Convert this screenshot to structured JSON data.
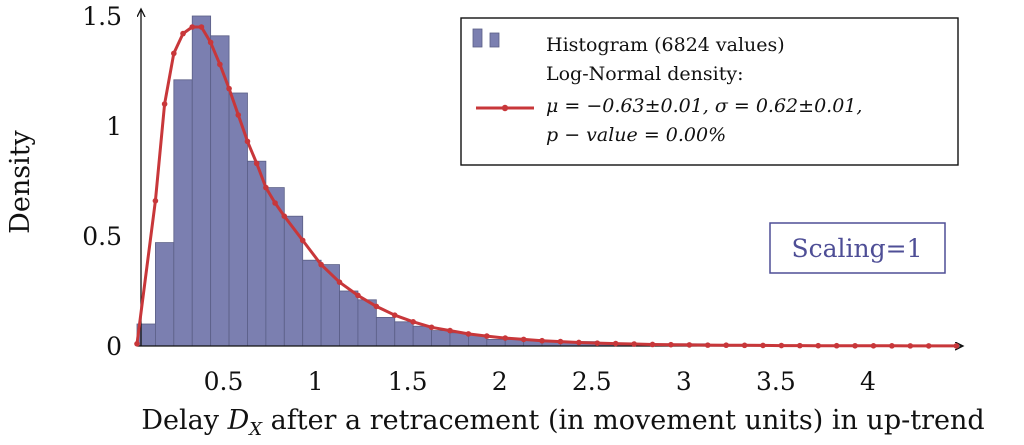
{
  "chart_data": {
    "type": "bar",
    "title": "",
    "xlabel": "Delay D_X after a retracement (in movement units) in up-trend",
    "xlabel_parts": {
      "pre": "Delay ",
      "var": "D",
      "sub": "X",
      "post": " after a retracement (in movement units) in up-trend"
    },
    "ylabel": "Density",
    "xlim": [
      0.03,
      4.5
    ],
    "ylim": [
      0,
      1.5
    ],
    "xticks": [
      "0.5",
      "1",
      "1.5",
      "2",
      "2.5",
      "3",
      "3.5",
      "4"
    ],
    "yticks": [
      "0",
      "0.5",
      "1",
      "1.5"
    ],
    "grid": false,
    "legend_position": "top-right",
    "colors": {
      "histogram": "#7b7fb0",
      "histogram_edge": "#5a5e86",
      "density": "#c8373a",
      "scaling": "#4e4e96"
    },
    "histogram": {
      "name": "Histogram (6824 values)",
      "bin_width": 0.1,
      "bins": [
        {
          "x": 0.03,
          "value": 0.1
        },
        {
          "x": 0.13,
          "value": 0.47
        },
        {
          "x": 0.23,
          "value": 1.21
        },
        {
          "x": 0.33,
          "value": 1.5
        },
        {
          "x": 0.43,
          "value": 1.41
        },
        {
          "x": 0.53,
          "value": 1.15
        },
        {
          "x": 0.63,
          "value": 0.84
        },
        {
          "x": 0.73,
          "value": 0.72
        },
        {
          "x": 0.83,
          "value": 0.59
        },
        {
          "x": 0.93,
          "value": 0.39
        },
        {
          "x": 1.03,
          "value": 0.37
        },
        {
          "x": 1.13,
          "value": 0.25
        },
        {
          "x": 1.23,
          "value": 0.21
        },
        {
          "x": 1.33,
          "value": 0.13
        },
        {
          "x": 1.43,
          "value": 0.11
        },
        {
          "x": 1.53,
          "value": 0.09
        },
        {
          "x": 1.63,
          "value": 0.07
        },
        {
          "x": 1.73,
          "value": 0.06
        },
        {
          "x": 1.83,
          "value": 0.05
        },
        {
          "x": 1.93,
          "value": 0.03
        },
        {
          "x": 2.03,
          "value": 0.03
        },
        {
          "x": 2.13,
          "value": 0.03
        },
        {
          "x": 2.23,
          "value": 0.02
        },
        {
          "x": 2.33,
          "value": 0.02
        },
        {
          "x": 2.43,
          "value": 0.02
        },
        {
          "x": 2.53,
          "value": 0.01
        },
        {
          "x": 2.63,
          "value": 0.01
        },
        {
          "x": 2.73,
          "value": 0.01
        },
        {
          "x": 2.83,
          "value": 0.01
        },
        {
          "x": 2.93,
          "value": 0.01
        },
        {
          "x": 3.03,
          "value": 0.01
        },
        {
          "x": 3.13,
          "value": 0.005
        },
        {
          "x": 3.23,
          "value": 0.005
        },
        {
          "x": 3.33,
          "value": 0.005
        },
        {
          "x": 3.43,
          "value": 0.003
        },
        {
          "x": 3.53,
          "value": 0.003
        }
      ]
    },
    "density": {
      "legend_title": "Log-Normal density:",
      "legend_line2": "μ = −0.63±0.01, σ = 0.62±0.01,",
      "legend_line3": "p − value = 0.00%",
      "x": [
        0.03,
        0.13,
        0.18,
        0.23,
        0.28,
        0.33,
        0.38,
        0.43,
        0.48,
        0.53,
        0.58,
        0.63,
        0.68,
        0.73,
        0.78,
        0.83,
        0.93,
        1.03,
        1.13,
        1.23,
        1.33,
        1.43,
        1.53,
        1.63,
        1.73,
        1.83,
        1.93,
        2.03,
        2.13,
        2.23,
        2.33,
        2.43,
        2.53,
        2.63,
        2.73,
        2.83,
        2.93,
        3.03,
        3.13,
        3.23,
        3.33,
        3.43,
        3.53,
        3.63,
        3.73,
        3.83,
        3.93,
        4.03,
        4.13,
        4.23,
        4.33,
        4.48
      ],
      "y": [
        0.01,
        0.66,
        1.1,
        1.33,
        1.42,
        1.45,
        1.45,
        1.38,
        1.28,
        1.17,
        1.05,
        0.93,
        0.83,
        0.72,
        0.65,
        0.59,
        0.48,
        0.37,
        0.29,
        0.23,
        0.18,
        0.14,
        0.11,
        0.085,
        0.07,
        0.055,
        0.045,
        0.036,
        0.03,
        0.024,
        0.02,
        0.016,
        0.013,
        0.011,
        0.009,
        0.007,
        0.006,
        0.005,
        0.004,
        0.0035,
        0.003,
        0.0025,
        0.002,
        0.0017,
        0.0014,
        0.0012,
        0.001,
        0.0008,
        0.0007,
        0.0006,
        0.0005,
        0.0004
      ]
    },
    "annotation": "Scaling=1"
  }
}
